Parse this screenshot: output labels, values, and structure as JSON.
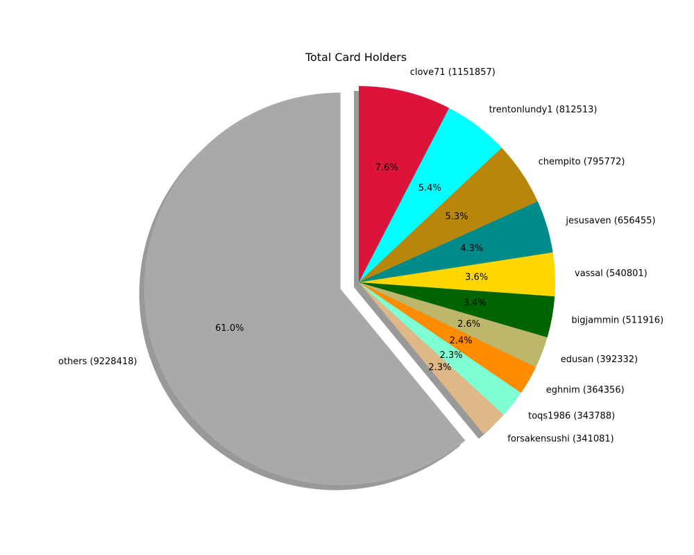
{
  "chart_data": {
    "type": "pie",
    "title": "Total Card Holders",
    "start_angle_deg": 90,
    "direction": "clockwise",
    "shadow": true,
    "slices": [
      {
        "label": "clove71 (1151857)",
        "value": 1151857,
        "pct_label": "7.6%",
        "color": "#dc143c",
        "explode": false
      },
      {
        "label": "trentonlundy1 (812513)",
        "value": 812513,
        "pct_label": "5.4%",
        "color": "#00ffff",
        "explode": false
      },
      {
        "label": "chempito (795772)",
        "value": 795772,
        "pct_label": "5.3%",
        "color": "#b8860b",
        "explode": false
      },
      {
        "label": "jesusaven (656455)",
        "value": 656455,
        "pct_label": "4.3%",
        "color": "#008b8b",
        "explode": false
      },
      {
        "label": "vassal (540801)",
        "value": 540801,
        "pct_label": "3.6%",
        "color": "#ffd700",
        "explode": false
      },
      {
        "label": "bigjammin (511916)",
        "value": 511916,
        "pct_label": "3.4%",
        "color": "#006400",
        "explode": false
      },
      {
        "label": "edusan (392332)",
        "value": 392332,
        "pct_label": "2.6%",
        "color": "#bdb76b",
        "explode": false
      },
      {
        "label": "eghnim (364356)",
        "value": 364356,
        "pct_label": "2.4%",
        "color": "#ff8c00",
        "explode": false
      },
      {
        "label": "toqs1986 (343788)",
        "value": 343788,
        "pct_label": "2.3%",
        "color": "#7fffd4",
        "explode": false
      },
      {
        "label": "forsakensushi (341081)",
        "value": 341081,
        "pct_label": "2.3%",
        "color": "#deb887",
        "explode": false
      },
      {
        "label": "others (9228418)",
        "value": 9228418,
        "pct_label": "61.0%",
        "color": "#a9a9a9",
        "explode": true
      }
    ]
  }
}
